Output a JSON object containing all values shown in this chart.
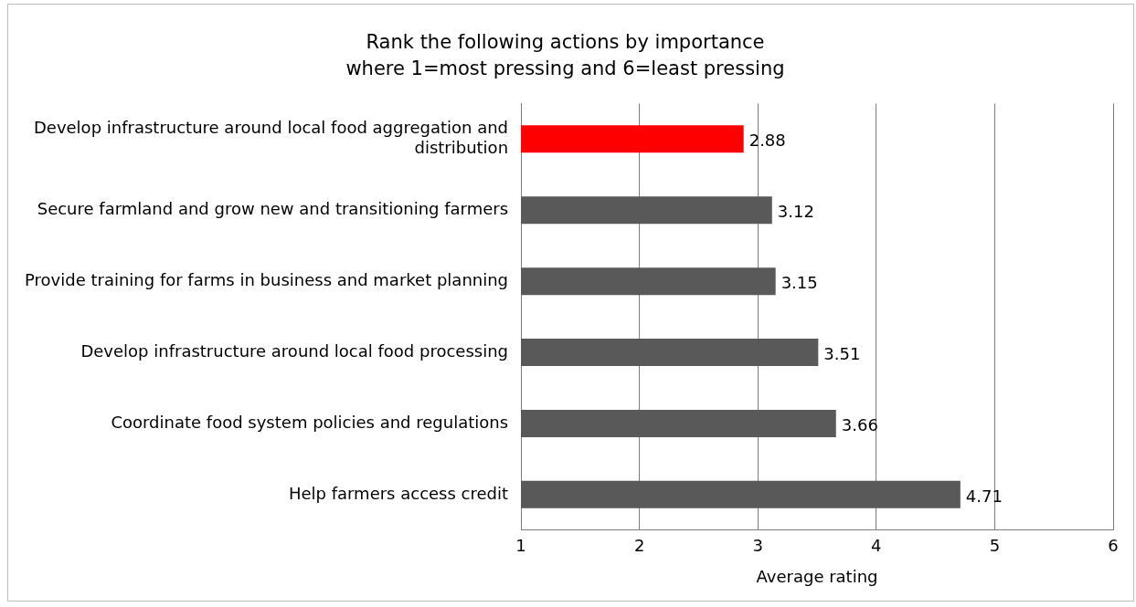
{
  "chart_data": {
    "type": "bar",
    "orientation": "horizontal",
    "title": "Rank the following actions by importance",
    "subtitle": "where 1=most pressing and 6=least pressing",
    "categories": [
      "Develop infrastructure around local food aggregation and distribution",
      "Secure farmland and grow new and transitioning farmers",
      "Provide training for farms in business and market planning",
      "Develop infrastructure around local food processing",
      "Coordinate food system policies and regulations",
      "Help farmers access credit"
    ],
    "values": [
      2.88,
      3.12,
      3.15,
      3.51,
      3.66,
      4.71
    ],
    "colors": [
      "#ff0000",
      "#595959",
      "#595959",
      "#595959",
      "#595959",
      "#595959"
    ],
    "xlabel": "Average rating",
    "xlim": [
      1,
      6
    ],
    "xticks": [
      1,
      2,
      3,
      4,
      5,
      6
    ],
    "grid": "x",
    "legend": false,
    "data_labels": true
  }
}
